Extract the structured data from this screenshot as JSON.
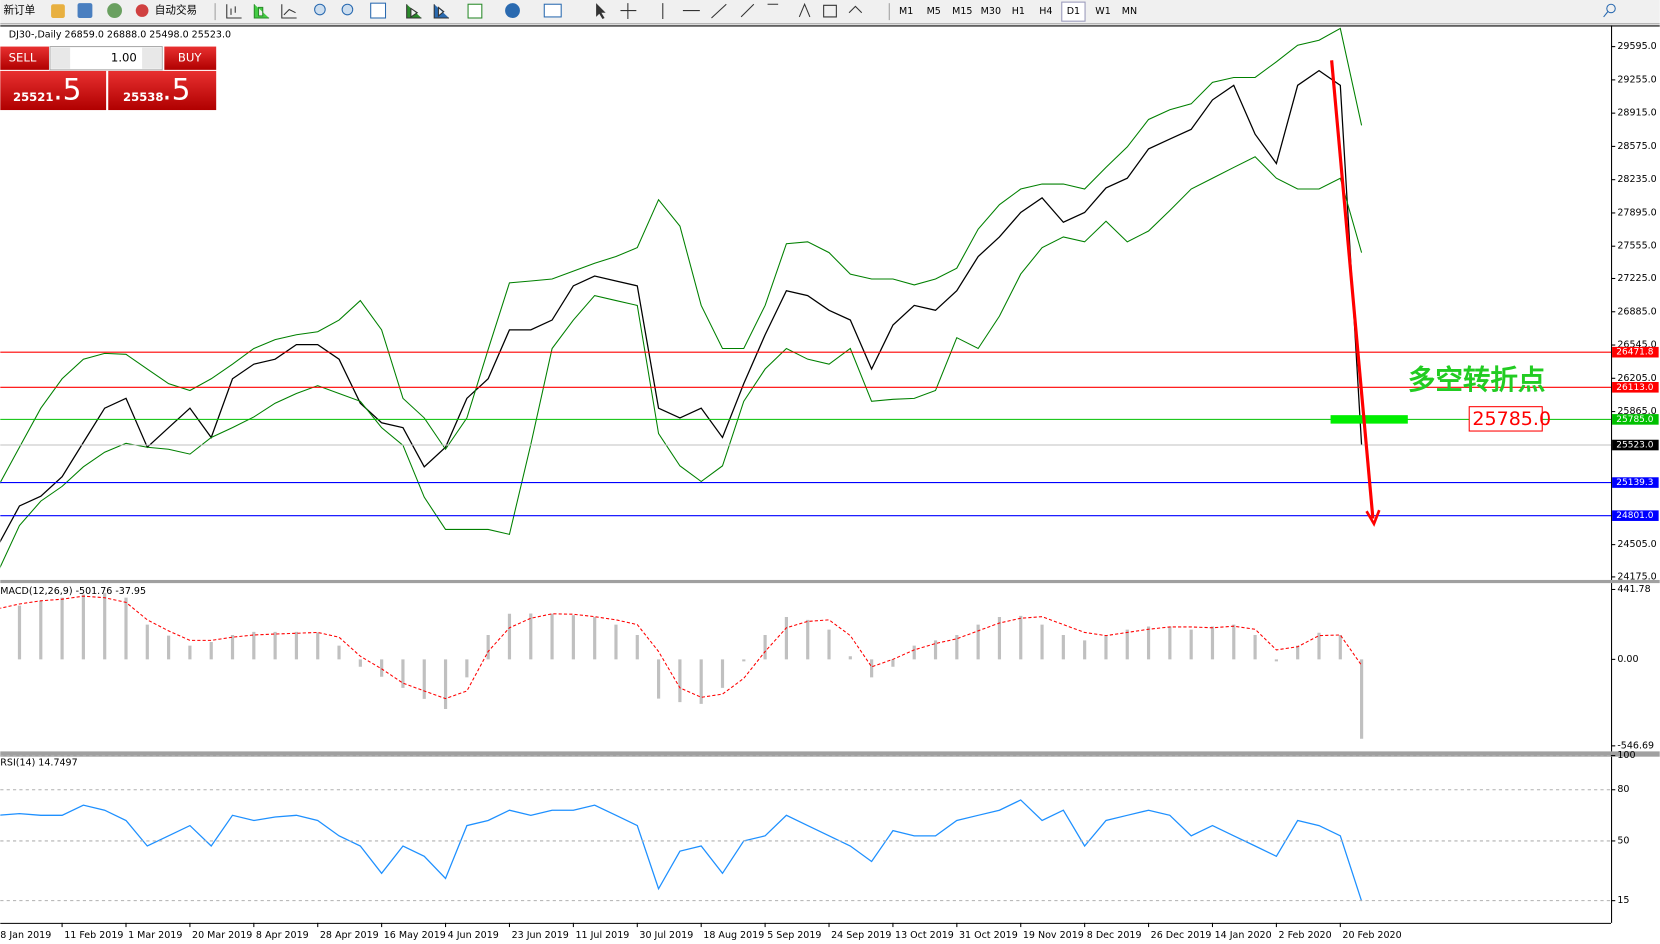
{
  "toolbar": {
    "new_order": "新订单",
    "auto_trading": "自动交易",
    "timeframes": [
      "M1",
      "M5",
      "M15",
      "M30",
      "H1",
      "H4",
      "D1",
      "W1",
      "MN"
    ]
  },
  "trade_panel": {
    "sell": "SELL",
    "buy": "BUY",
    "lots": "1.00",
    "sell_price": {
      "main": "25521",
      "pips": ".5"
    },
    "buy_price": {
      "main": "25538",
      "pips": ".5"
    }
  },
  "chart_data": [
    {
      "type": "line",
      "title": "DJ30-,Daily  26859.0 26888.0 25498.0 25523.0",
      "categories": [
        "8 Jan 2019",
        null,
        null,
        "11 Feb 2019",
        null,
        null,
        "1 Mar 2019",
        null,
        null,
        "20 Mar 2019",
        null,
        null,
        "8 Apr 2019",
        null,
        null,
        "28 Apr 2019",
        null,
        null,
        "16 May 2019",
        null,
        null,
        "4 Jun 2019",
        null,
        null,
        "23 Jun 2019",
        null,
        null,
        "11 Jul 2019",
        null,
        null,
        "30 Jul 2019",
        null,
        null,
        "18 Aug 2019",
        null,
        null,
        "5 Sep 2019",
        null,
        null,
        "24 Sep 2019",
        null,
        null,
        "13 Oct 2019",
        null,
        null,
        "31 Oct 2019",
        null,
        null,
        "19 Nov 2019",
        null,
        null,
        "8 Dec 2019",
        null,
        null,
        "26 Dec 2019",
        null,
        null,
        "14 Jan 2020",
        null,
        null,
        "2 Feb 2020",
        null,
        null,
        "20 Feb 2020",
        null
      ],
      "series": [
        {
          "color": "#000000",
          "values": [
            24500,
            24900,
            25000,
            25200,
            25550,
            25900,
            26000,
            25500,
            25700,
            25900,
            25600,
            26200,
            26350,
            26400,
            26550,
            26550,
            26400,
            25950,
            25750,
            25700,
            25300,
            25500,
            26000,
            26200,
            26700,
            26700,
            26800,
            27150,
            27250,
            27200,
            27150,
            25900,
            25800,
            25900,
            25600,
            26150,
            26650,
            27100,
            27050,
            26900,
            26800,
            26300,
            26750,
            26950,
            26900,
            27100,
            27450,
            27650,
            27900,
            28050,
            27800,
            27900,
            28150,
            28250,
            28550,
            28650,
            28750,
            29050,
            29200,
            28700,
            28400,
            29200,
            29350,
            29200,
            25523
          ]
        },
        {
          "color": "#008000",
          "values": [
            25100,
            25500,
            25900,
            26200,
            26400,
            26460,
            26450,
            26300,
            26150,
            26080,
            26200,
            26350,
            26510,
            26600,
            26650,
            26680,
            26800,
            27000,
            26700,
            26000,
            25800,
            25480,
            25800,
            26500,
            27180,
            27200,
            27220,
            27300,
            27380,
            27450,
            27540,
            28030,
            27760,
            26950,
            26510,
            26510,
            26950,
            27580,
            27600,
            27490,
            27270,
            27220,
            27220,
            27160,
            27220,
            27330,
            27730,
            27980,
            28140,
            28190,
            28190,
            28140,
            28360,
            28570,
            28850,
            28950,
            29010,
            29230,
            29280,
            29280,
            29440,
            29610,
            29660,
            29780,
            28790
          ]
        },
        {
          "color": "#008000",
          "values": [
            24230,
            24700,
            24950,
            25100,
            25300,
            25450,
            25540,
            25500,
            25480,
            25430,
            25600,
            25700,
            25810,
            25950,
            26050,
            26130,
            26050,
            25970,
            25700,
            25520,
            24990,
            24660,
            24660,
            24660,
            24610,
            25530,
            26510,
            26800,
            27050,
            27000,
            26950,
            25640,
            25310,
            25150,
            25310,
            25970,
            26300,
            26510,
            26400,
            26350,
            26510,
            25970,
            25990,
            26000,
            26080,
            26620,
            26510,
            26840,
            27270,
            27540,
            27650,
            27600,
            27810,
            27600,
            27710,
            27920,
            28140,
            28250,
            28360,
            28470,
            28250,
            28140,
            28140,
            28250,
            27490
          ]
        }
      ],
      "ylim": [
        24144,
        29801
      ],
      "yticks": [
        {
          "value": 29595,
          "label": "29595.0"
        },
        {
          "value": 29255,
          "label": "29255.0"
        },
        {
          "value": 28915,
          "label": "28915.0"
        },
        {
          "value": 28575,
          "label": "28575.0"
        },
        {
          "value": 28235,
          "label": "28235.0"
        },
        {
          "value": 27895,
          "label": "27895.0"
        },
        {
          "value": 27555,
          "label": "27555.0"
        },
        {
          "value": 27225,
          "label": "27225.0"
        },
        {
          "value": 26885,
          "label": "26885.0"
        },
        {
          "value": 26545,
          "label": "26545.0"
        },
        {
          "value": 26205,
          "label": "26205.0"
        },
        {
          "value": 25865,
          "label": "25865.0"
        },
        {
          "value": 24505,
          "label": "24505.0"
        },
        {
          "value": 24175,
          "label": "24175.0"
        }
      ],
      "levels": [
        {
          "value": 26471.8,
          "label": "26471.8",
          "color": "#ff0000"
        },
        {
          "value": 26113,
          "label": "26113.0",
          "color": "#ff0000"
        },
        {
          "value": 25785,
          "label": "25785.0",
          "color": "#00c000"
        },
        {
          "value": 25139.3,
          "label": "25139.3",
          "color": "#0000ff"
        },
        {
          "value": 24801,
          "label": "24801.0",
          "color": "#0000ff"
        }
      ],
      "last_price": {
        "value": 25523,
        "label": "25523.0"
      },
      "annotation": {
        "text": "多空转折点",
        "label": "25785.0",
        "value": 25785
      }
    },
    {
      "type": "bar",
      "title": "MACD(12,26,9) -501.76 -37.95",
      "series": [
        {
          "type": "bar",
          "color": "#c0c0c0",
          "values": [
            320,
            340,
            370,
            390,
            410,
            420,
            390,
            220,
            150,
            87,
            110,
            154,
            174,
            174,
            174,
            170,
            87,
            -47,
            -110,
            -180,
            -250,
            -314,
            -114,
            154,
            288,
            290,
            288,
            280,
            268,
            220,
            154,
            -248,
            -270,
            -281,
            -180,
            -13,
            154,
            268,
            250,
            188,
            20,
            -114,
            -47,
            87,
            120,
            154,
            220,
            268,
            275,
            220,
            154,
            120,
            154,
            188,
            208,
            208,
            188,
            208,
            220,
            154,
            -13,
            87,
            168,
            154,
            -501.76
          ]
        },
        {
          "type": "line",
          "color": "#ff0000",
          "values": [
            320,
            350,
            370,
            380,
            400,
            390,
            360,
            250,
            180,
            120,
            120,
            140,
            154,
            160,
            165,
            170,
            140,
            20,
            -60,
            -150,
            -200,
            -248,
            -200,
            50,
            200,
            260,
            288,
            285,
            270,
            250,
            220,
            50,
            -180,
            -240,
            -220,
            -120,
            50,
            200,
            240,
            250,
            150,
            -47,
            0,
            60,
            100,
            130,
            180,
            230,
            260,
            270,
            220,
            170,
            150,
            170,
            190,
            205,
            205,
            200,
            210,
            190,
            60,
            80,
            150,
            154,
            -37.95
          ]
        }
      ],
      "ylim": [
        -575,
        482
      ],
      "yticks": [
        441.78,
        {
          "value": 0,
          "label": "0.00"
        },
        -546.69
      ]
    },
    {
      "type": "line",
      "title": "RSI(14) 14.7497",
      "color": "#1e90ff",
      "values": [
        65,
        66,
        65,
        65,
        71,
        68,
        62,
        47,
        53,
        59,
        47,
        65,
        62,
        64,
        65,
        62,
        53,
        47,
        31,
        47,
        41,
        28,
        59,
        62,
        68,
        65,
        68,
        68,
        71,
        65,
        59,
        22,
        44,
        47,
        31,
        50,
        53,
        65,
        59,
        53,
        47,
        38,
        56,
        53,
        53,
        62,
        65,
        68,
        74,
        62,
        68,
        47,
        62,
        65,
        68,
        65,
        53,
        59,
        53,
        47,
        41,
        62,
        59,
        53,
        14.7497
      ],
      "ylim": [
        2,
        100
      ],
      "yticks": [
        100,
        80,
        50,
        15
      ],
      "grid": true
    }
  ]
}
